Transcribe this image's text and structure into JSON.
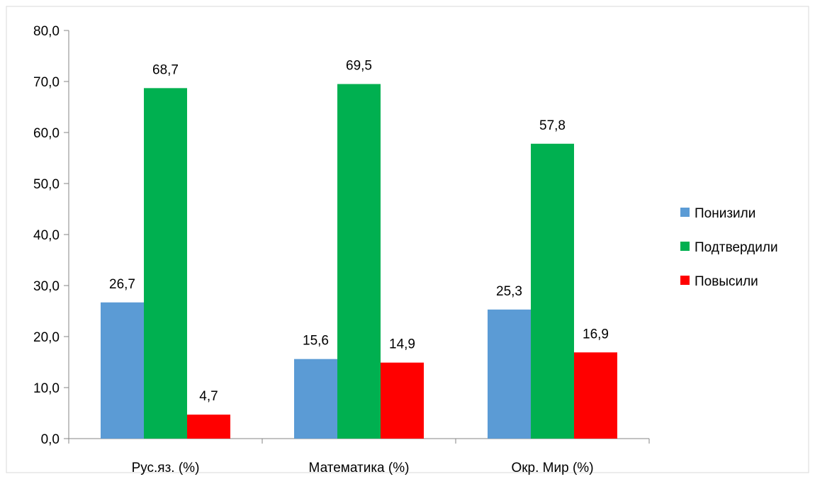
{
  "chart_data": {
    "type": "bar",
    "title": "",
    "xlabel": "",
    "ylabel": "",
    "categories": [
      "Рус.яз. (%)",
      "Математика (%)",
      "Окр. Мир (%)"
    ],
    "series": [
      {
        "name": "Понизили",
        "values": [
          26.7,
          15.6,
          25.3
        ],
        "labels": [
          "26,7",
          "15,6",
          "25,3"
        ],
        "color": "#5B9BD5"
      },
      {
        "name": "Подтвердили",
        "values": [
          68.7,
          69.5,
          57.8
        ],
        "labels": [
          "68,7",
          "69,5",
          "57,8"
        ],
        "color": "#00B050"
      },
      {
        "name": "Повысили",
        "values": [
          4.7,
          14.9,
          16.9
        ],
        "labels": [
          "4,7",
          "14,9",
          "16,9"
        ],
        "color": "#FF0000"
      }
    ],
    "ylim": [
      0,
      80
    ],
    "yticks": [
      0,
      10,
      20,
      30,
      40,
      50,
      60,
      70,
      80
    ],
    "ytick_labels": [
      "0,0",
      "10,0",
      "20,0",
      "30,0",
      "40,0",
      "50,0",
      "60,0",
      "70,0",
      "80,0"
    ],
    "grid": false,
    "legend_position": "right"
  }
}
